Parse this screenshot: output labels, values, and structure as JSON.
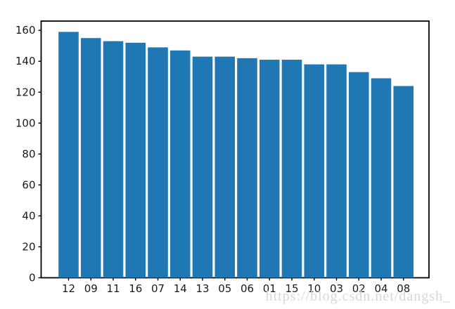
{
  "watermark": {
    "text": "https://blog.csdn.net/dangsh_",
    "color": "#d7d7d7"
  },
  "chart_data": {
    "type": "bar",
    "categories": [
      "12",
      "09",
      "11",
      "16",
      "07",
      "14",
      "13",
      "05",
      "06",
      "01",
      "15",
      "10",
      "03",
      "02",
      "04",
      "08"
    ],
    "values": [
      159,
      155,
      153,
      152,
      149,
      147,
      143,
      143,
      142,
      141,
      141,
      138,
      138,
      133,
      129,
      124
    ],
    "title": "",
    "xlabel": "",
    "ylabel": "",
    "ylim": [
      0,
      166
    ],
    "yticks": [
      0,
      20,
      40,
      60,
      80,
      100,
      120,
      140,
      160
    ],
    "bar_color": "#1f77b4",
    "axis_color": "#000000",
    "tick_label_color": "#1a1a1a",
    "background": "#ffffff",
    "grid": false,
    "legend_position": "none",
    "bar_width_fraction": 0.9
  }
}
